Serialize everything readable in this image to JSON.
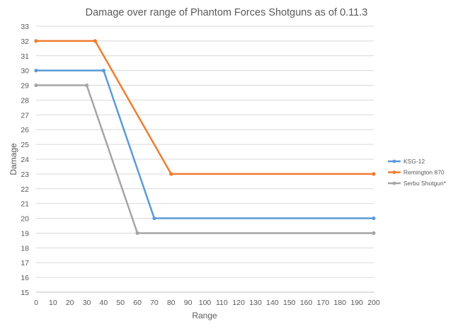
{
  "chart_data": {
    "type": "line",
    "title": "Damage over range of Phantom Forces Shotguns as of 0.11.3",
    "xlabel": "Range",
    "ylabel": "Damage",
    "xlim": [
      0,
      200
    ],
    "ylim": [
      15,
      33
    ],
    "x_ticks": [
      0,
      10,
      20,
      30,
      40,
      50,
      60,
      70,
      80,
      90,
      100,
      110,
      120,
      130,
      140,
      150,
      160,
      170,
      180,
      190,
      200
    ],
    "y_ticks": [
      15,
      16,
      17,
      18,
      19,
      20,
      21,
      22,
      23,
      24,
      25,
      26,
      27,
      28,
      29,
      30,
      31,
      32,
      33
    ],
    "grid": "horizontal",
    "legend_position": "right",
    "series": [
      {
        "name": "KSG-12",
        "color": "#5b9bd5",
        "points": [
          [
            0,
            30
          ],
          [
            40,
            30
          ],
          [
            70,
            20
          ],
          [
            200,
            20
          ]
        ]
      },
      {
        "name": "Remington 870",
        "color": "#ed7d31",
        "points": [
          [
            0,
            32
          ],
          [
            35,
            32
          ],
          [
            80,
            23
          ],
          [
            200,
            23
          ]
        ]
      },
      {
        "name": "Serbu Shotgun*",
        "color": "#a5a5a5",
        "points": [
          [
            0,
            29
          ],
          [
            30,
            29
          ],
          [
            60,
            19
          ],
          [
            200,
            19
          ]
        ]
      }
    ]
  }
}
